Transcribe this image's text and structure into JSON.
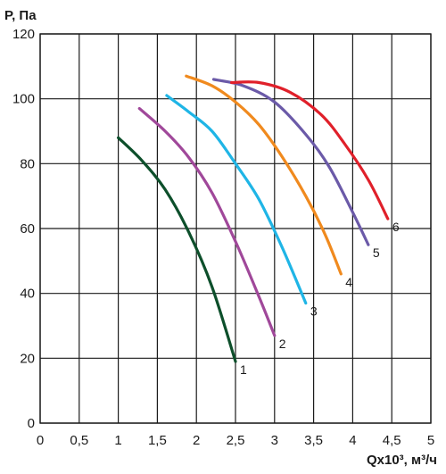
{
  "chart_data": {
    "type": "line",
    "ylabel": "P, Па",
    "xlabel": "Qx10³, м³/ч",
    "xlim": [
      0,
      5
    ],
    "ylim": [
      0,
      120
    ],
    "x_ticks": [
      "0",
      "0,5",
      "1",
      "1,5",
      "2",
      "2,5",
      "3",
      "3,5",
      "4",
      "4,5",
      "5"
    ],
    "y_ticks": [
      "0",
      "20",
      "40",
      "60",
      "80",
      "100",
      "120"
    ],
    "grid": true,
    "series": [
      {
        "label": "1",
        "color": "#0d4f2b",
        "x": [
          1.0,
          1.3,
          1.6,
          1.9,
          2.2,
          2.5
        ],
        "y": [
          88,
          81,
          72,
          59,
          42,
          19
        ]
      },
      {
        "label": "2",
        "color": "#a0489a",
        "x": [
          1.27,
          1.6,
          1.9,
          2.2,
          2.5,
          2.8,
          3.0
        ],
        "y": [
          97,
          90,
          82,
          71,
          56,
          39,
          27
        ]
      },
      {
        "label": "3",
        "color": "#1fb5e6",
        "x": [
          1.62,
          1.9,
          2.2,
          2.5,
          2.8,
          3.1,
          3.4
        ],
        "y": [
          101,
          96,
          90,
          80,
          69,
          54,
          37
        ]
      },
      {
        "label": "4",
        "color": "#f08a1e",
        "x": [
          1.87,
          2.2,
          2.5,
          2.8,
          3.1,
          3.4,
          3.65,
          3.85
        ],
        "y": [
          107,
          104,
          99,
          92,
          82,
          70,
          58,
          46
        ]
      },
      {
        "label": "5",
        "color": "#6b5aa8",
        "x": [
          2.22,
          2.6,
          3.0,
          3.4,
          3.7,
          4.0,
          4.2
        ],
        "y": [
          106,
          104,
          99,
          89,
          79,
          65,
          55
        ]
      },
      {
        "label": "6",
        "color": "#e0202a",
        "x": [
          2.45,
          2.8,
          3.2,
          3.6,
          3.9,
          4.2,
          4.45
        ],
        "y": [
          105,
          105,
          102,
          95,
          86,
          75,
          63
        ]
      }
    ]
  }
}
